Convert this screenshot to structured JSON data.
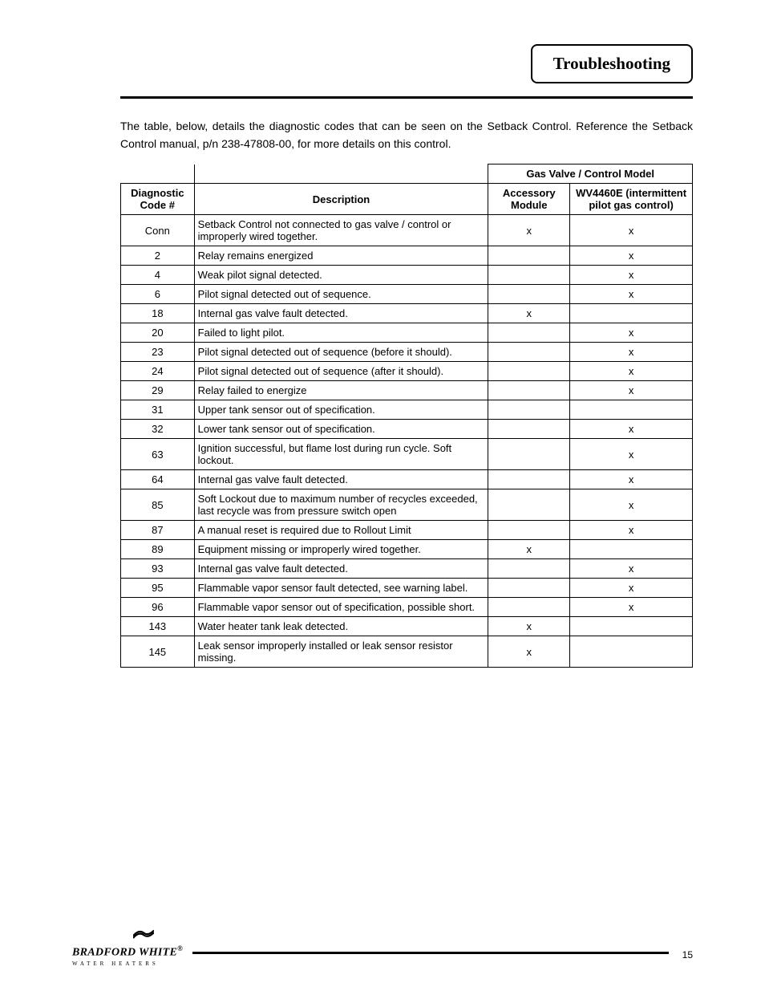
{
  "header": {
    "title": "Troubleshooting"
  },
  "intro": "The table, below, details the diagnostic codes that can be seen on the Setback Control.  Reference the Setback Control manual, p/n 238-47808-00, for more details on this control.",
  "table": {
    "super_header": "Gas Valve / Control Model",
    "columns": {
      "code": "Diagnostic Code #",
      "desc": "Description",
      "accessory": "Accessory Module",
      "wv": "WV4460E (intermittent pilot gas control)"
    },
    "rows": [
      {
        "code": "Conn",
        "desc": "Setback Control not connected to gas valve / control or improperly wired together.",
        "acc": "x",
        "wv": "x"
      },
      {
        "code": "2",
        "desc": "Relay remains energized",
        "acc": "",
        "wv": "x"
      },
      {
        "code": "4",
        "desc": "Weak pilot signal detected.",
        "acc": "",
        "wv": "x"
      },
      {
        "code": "6",
        "desc": "Pilot signal detected out of sequence.",
        "acc": "",
        "wv": "x"
      },
      {
        "code": "18",
        "desc": "Internal gas valve fault detected.",
        "acc": "x",
        "wv": ""
      },
      {
        "code": "20",
        "desc": "Failed to light pilot.",
        "acc": "",
        "wv": "x"
      },
      {
        "code": "23",
        "desc": "Pilot signal detected out of sequence (before it should).",
        "acc": "",
        "wv": "x"
      },
      {
        "code": "24",
        "desc": "Pilot signal detected out of sequence (after it should).",
        "acc": "",
        "wv": "x"
      },
      {
        "code": "29",
        "desc": "Relay failed to energize",
        "acc": "",
        "wv": "x"
      },
      {
        "code": "31",
        "desc": "Upper tank sensor out of specification.",
        "acc": "",
        "wv": ""
      },
      {
        "code": "32",
        "desc": "Lower tank sensor out of specification.",
        "acc": "",
        "wv": "x"
      },
      {
        "code": "63",
        "desc": "Ignition successful, but flame lost during run cycle. Soft lockout.",
        "acc": "",
        "wv": "x"
      },
      {
        "code": "64",
        "desc": "Internal gas valve fault detected.",
        "acc": "",
        "wv": "x"
      },
      {
        "code": "85",
        "desc": "Soft Lockout due to maximum number of recycles exceeded, last recycle was from pressure switch open",
        "acc": "",
        "wv": "x"
      },
      {
        "code": "87",
        "desc": "A manual reset is required due to Rollout Limit",
        "acc": "",
        "wv": "x"
      },
      {
        "code": "89",
        "desc": "Equipment missing or improperly wired together.",
        "acc": "x",
        "wv": ""
      },
      {
        "code": "93",
        "desc": "Internal gas valve fault detected.",
        "acc": "",
        "wv": "x"
      },
      {
        "code": "95",
        "desc": "Flammable vapor sensor fault detected, see warning label.",
        "acc": "",
        "wv": "x"
      },
      {
        "code": "96",
        "desc": "Flammable vapor sensor out of specification, possible short.",
        "acc": "",
        "wv": "x"
      },
      {
        "code": "143",
        "desc": "Water heater tank leak detected.",
        "acc": "x",
        "wv": ""
      },
      {
        "code": "145",
        "desc": "Leak sensor improperly installed or leak sensor resistor missing.",
        "acc": "x",
        "wv": ""
      }
    ]
  },
  "footer": {
    "brand_name": "BRADFORD WHITE",
    "brand_sub": "WATER HEATERS",
    "page_number": "15"
  },
  "colors": {
    "text": "#000000",
    "background": "#ffffff",
    "border": "#000000"
  }
}
